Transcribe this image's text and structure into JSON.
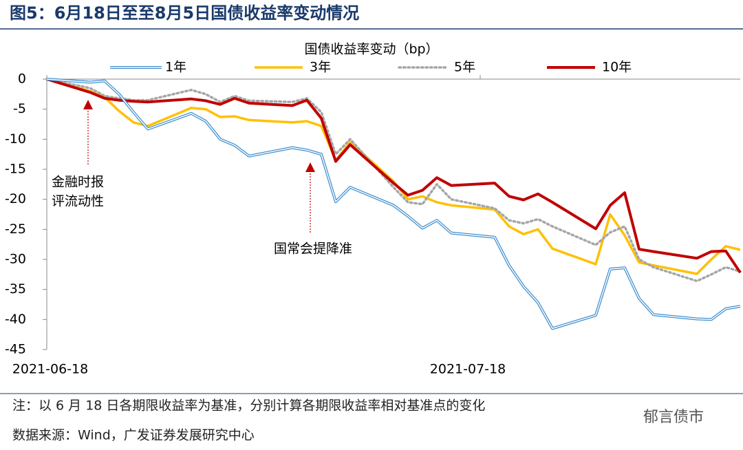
{
  "chart_data": {
    "type": "line",
    "title": "图5：6月18日至至8月5日国债收益率变动情况",
    "legend_title": "国债收益率变动（bp）",
    "x": [
      "2021-06-18",
      "2021-06-21",
      "2021-06-22",
      "2021-06-23",
      "2021-06-24",
      "2021-06-25",
      "2021-06-28",
      "2021-06-29",
      "2021-06-30",
      "2021-07-01",
      "2021-07-02",
      "2021-07-05",
      "2021-07-06",
      "2021-07-07",
      "2021-07-08",
      "2021-07-09",
      "2021-07-12",
      "2021-07-13",
      "2021-07-14",
      "2021-07-15",
      "2021-07-16",
      "2021-07-19",
      "2021-07-20",
      "2021-07-21",
      "2021-07-22",
      "2021-07-23",
      "2021-07-26",
      "2021-07-27",
      "2021-07-28",
      "2021-07-29",
      "2021-07-30",
      "2021-08-02",
      "2021-08-03",
      "2021-08-04",
      "2021-08-05"
    ],
    "xlim": [
      "2021-06-18",
      "2021-08-05"
    ],
    "xticks": [
      "2021-06-18",
      "2021-07-18"
    ],
    "ylim": [
      -45,
      0
    ],
    "yticks": [
      0,
      -5,
      -10,
      -15,
      -20,
      -25,
      -30,
      -35,
      -40,
      -45
    ],
    "series": [
      {
        "name": "1年",
        "color": "#3f8fd0",
        "style": "double",
        "values": [
          0,
          -0.5,
          -0.3,
          -2.5,
          -5.5,
          -8.3,
          -5.7,
          -7,
          -10,
          -11,
          -12.8,
          -11.4,
          -11.8,
          -12.5,
          -20.4,
          -18,
          -21,
          -22.8,
          -24.8,
          -23.5,
          -25.6,
          -26.3,
          -31,
          -34.5,
          -37.2,
          -41.5,
          -39.3,
          -31.6,
          -31.4,
          -36.5,
          -39.2,
          -39.9,
          -40,
          -38.2,
          -37.8
        ]
      },
      {
        "name": "3年",
        "color": "#ffc000",
        "style": "solid",
        "values": [
          0,
          -2,
          -3,
          -5.3,
          -7.2,
          -7.8,
          -4.8,
          -5,
          -6.3,
          -6.2,
          -6.8,
          -7.2,
          -7,
          -7.8,
          -13.5,
          -10.5,
          -17,
          -20,
          -19.5,
          -20.5,
          -21,
          -21.7,
          -24.5,
          -25.8,
          -25,
          -28.2,
          -30.8,
          -22.5,
          -26,
          -30.5,
          -31,
          -32.4,
          -30,
          -27.8,
          -28.4
        ]
      },
      {
        "name": "5年",
        "color": "#a6a6a6",
        "style": "dotted",
        "values": [
          0,
          -1.5,
          -2.8,
          -3.2,
          -3.5,
          -3.5,
          -1.8,
          -2.5,
          -3.8,
          -2.8,
          -3.6,
          -3.8,
          -3.2,
          -5.5,
          -12.5,
          -10,
          -18,
          -20.5,
          -20.8,
          -17.5,
          -20,
          -21.5,
          -23.5,
          -24,
          -23.3,
          -24.5,
          -27.6,
          -25.5,
          -24.5,
          -30,
          -31.3,
          -33.6,
          -32.5,
          -31.3,
          -32
        ]
      },
      {
        "name": "10年",
        "color": "#c00000",
        "style": "solid",
        "values": [
          0,
          -2.2,
          -3.2,
          -3.5,
          -3.7,
          -3.8,
          -3.3,
          -3.6,
          -4.2,
          -3.2,
          -4,
          -4.4,
          -3.5,
          -6.5,
          -13.7,
          -10.9,
          -17.3,
          -19.3,
          -18.5,
          -16.4,
          -17.7,
          -17.3,
          -19.5,
          -20.1,
          -19.1,
          -20.5,
          -24.9,
          -21,
          -18.9,
          -28.3,
          -28.7,
          -29.8,
          -28.7,
          -28.6,
          -32.2
        ]
      }
    ],
    "annotations": [
      {
        "lines": [
          "金融时报",
          "评流动性"
        ]
      },
      {
        "lines": [
          "国常会提降准"
        ]
      }
    ],
    "notes": [
      "注：以 6 月 18 日各期限收益率为基准，分别计算各期限收益率相对基准点的变化",
      "数据来源：Wind，广发证券发展研究中心"
    ],
    "watermark": "郁言债市"
  }
}
